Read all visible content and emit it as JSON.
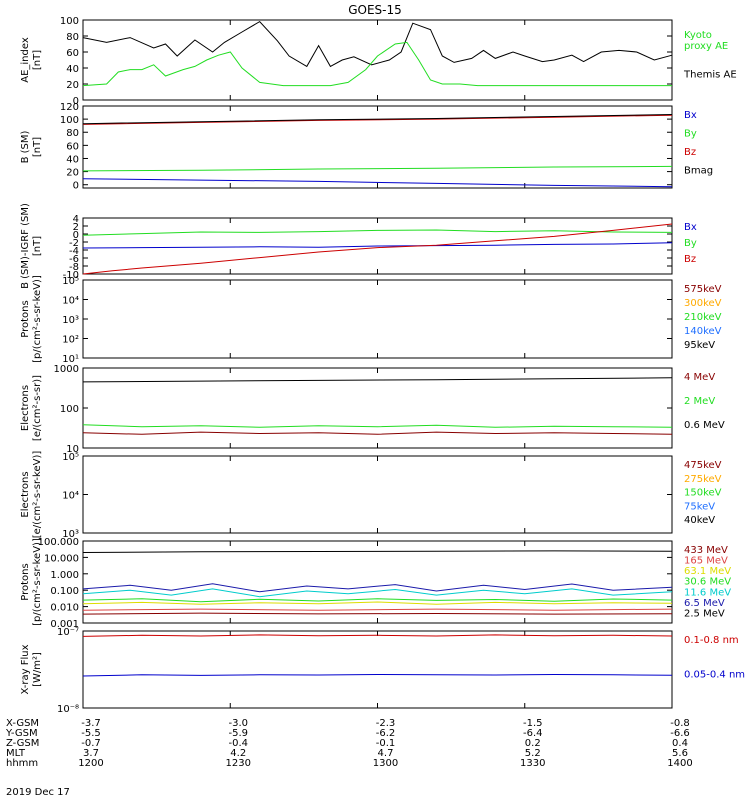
{
  "title": "GOES-15",
  "date_label": "2019 Dec 17",
  "colors": {
    "black": "#000000",
    "green": "#22dd22",
    "red": "#cc0000",
    "blue": "#0000cc",
    "orange": "#ffaa00",
    "lightblue": "#1f6fff",
    "darkred": "#880000",
    "lightred": "#dd4444",
    "yellow": "#dddd00",
    "cyan": "#00cccc",
    "navy": "#1a1aaa",
    "violet": "#772299"
  },
  "time_axis": {
    "ticks": [
      "1200",
      "1230",
      "1300",
      "1330",
      "1400"
    ],
    "rows": [
      {
        "label": "X-GSM",
        "values": [
          "-3.7",
          "-3.0",
          "-2.3",
          "-1.5",
          "-0.8"
        ]
      },
      {
        "label": "Y-GSM",
        "values": [
          "-5.5",
          "-5.9",
          "-6.2",
          "-6.4",
          "-6.6"
        ]
      },
      {
        "label": "Z-GSM",
        "values": [
          "-0.7",
          "-0.4",
          "-0.1",
          "0.2",
          "0.4"
        ]
      },
      {
        "label": "MLT",
        "values": [
          "3.7",
          "4.2",
          "4.7",
          "5.2",
          "5.6"
        ]
      },
      {
        "label": "hhmm",
        "values": [
          "1200",
          "1230",
          "1300",
          "1330",
          "1400"
        ]
      }
    ]
  },
  "chart_data": [
    {
      "type": "line",
      "id": "ae",
      "ylabel_lines": [
        "AE_index",
        "[nT]"
      ],
      "ylim": [
        0,
        100
      ],
      "yticks": [
        "0",
        "20",
        "40",
        "60",
        "80",
        "100"
      ],
      "legend": [
        {
          "text": "Kyoto",
          "color": "green"
        },
        {
          "text": "proxy AE",
          "color": "green"
        },
        {
          "text": "Themis AE",
          "color": "black"
        }
      ],
      "series": [
        {
          "name": "Themis AE",
          "color": "black",
          "x": [
            0,
            4,
            8,
            12,
            14,
            16,
            19,
            22,
            24,
            27,
            30,
            33,
            35,
            38,
            40,
            42,
            44,
            46,
            49,
            52,
            54,
            56,
            59,
            61,
            63,
            66,
            68,
            70,
            73,
            75,
            78,
            80,
            83,
            85,
            88,
            91,
            94,
            97,
            100
          ],
          "values": [
            78,
            72,
            78,
            65,
            70,
            55,
            75,
            60,
            72,
            85,
            98,
            74,
            55,
            42,
            68,
            42,
            50,
            54,
            44,
            50,
            60,
            96,
            88,
            55,
            47,
            52,
            62,
            52,
            60,
            55,
            48,
            50,
            56,
            48,
            60,
            62,
            60,
            50,
            56
          ]
        },
        {
          "name": "Kyoto proxy AE",
          "color": "green",
          "x": [
            0,
            4,
            6,
            8,
            10,
            12,
            14,
            17,
            19,
            21,
            23,
            25,
            27,
            30,
            32,
            34,
            38,
            42,
            45,
            48,
            50,
            53,
            55,
            57,
            59,
            61,
            64,
            67,
            70,
            100
          ],
          "values": [
            18,
            20,
            35,
            38,
            38,
            44,
            30,
            38,
            42,
            50,
            56,
            60,
            40,
            22,
            20,
            18,
            18,
            18,
            22,
            38,
            55,
            70,
            72,
            50,
            25,
            20,
            20,
            18,
            18,
            18
          ]
        }
      ]
    },
    {
      "type": "line",
      "id": "bsm",
      "ylabel_lines": [
        "B (SM)",
        "[nT]"
      ],
      "ylim": [
        -5,
        120
      ],
      "yticks": [
        "0",
        "20",
        "40",
        "60",
        "80",
        "100",
        "120"
      ],
      "legend": [
        {
          "text": "Bx",
          "color": "blue"
        },
        {
          "text": "By",
          "color": "green"
        },
        {
          "text": "Bz",
          "color": "red"
        },
        {
          "text": "Bmag",
          "color": "black"
        }
      ],
      "series": [
        {
          "name": "Bz",
          "color": "red",
          "x": [
            0,
            20,
            40,
            60,
            80,
            100
          ],
          "values": [
            92,
            95,
            98,
            100,
            103,
            106
          ]
        },
        {
          "name": "Bmag",
          "color": "black",
          "x": [
            0,
            20,
            40,
            60,
            80,
            100
          ],
          "values": [
            93,
            96,
            99,
            101,
            104,
            107
          ]
        },
        {
          "name": "By",
          "color": "green",
          "x": [
            0,
            20,
            40,
            60,
            80,
            100
          ],
          "values": [
            21,
            22,
            24,
            25,
            27,
            28
          ]
        },
        {
          "name": "Bx",
          "color": "blue",
          "x": [
            0,
            20,
            40,
            60,
            80,
            100
          ],
          "values": [
            9,
            7,
            5,
            2,
            -1,
            -3
          ]
        }
      ]
    },
    {
      "type": "line",
      "id": "bigrf",
      "ylabel_lines": [
        "B (SM)-IGRF (SM)",
        "[nT]"
      ],
      "ylim": [
        -10,
        4
      ],
      "yticks": [
        "-10",
        "-8",
        "-6",
        "-4",
        "-2",
        "0",
        "2",
        "4"
      ],
      "legend": [
        {
          "text": "Bx",
          "color": "blue"
        },
        {
          "text": "By",
          "color": "green"
        },
        {
          "text": "Bz",
          "color": "red"
        }
      ],
      "series": [
        {
          "name": "Bx",
          "color": "blue",
          "x": [
            0,
            10,
            20,
            30,
            40,
            50,
            60,
            70,
            80,
            90,
            100
          ],
          "values": [
            -3.5,
            -3.4,
            -3.3,
            -3.2,
            -3.3,
            -3.0,
            -2.9,
            -2.8,
            -2.6,
            -2.5,
            -2.2
          ]
        },
        {
          "name": "By",
          "color": "green",
          "x": [
            0,
            10,
            20,
            30,
            40,
            50,
            60,
            70,
            80,
            90,
            100
          ],
          "values": [
            -0.3,
            0.1,
            0.5,
            0.4,
            0.6,
            0.9,
            1.0,
            0.6,
            0.8,
            0.5,
            0.4
          ]
        },
        {
          "name": "Bz",
          "color": "red",
          "x": [
            0,
            5,
            10,
            20,
            30,
            40,
            50,
            60,
            70,
            80,
            90,
            100
          ],
          "values": [
            -10,
            -9.2,
            -8.5,
            -7.3,
            -5.9,
            -4.5,
            -3.4,
            -2.8,
            -1.7,
            -0.6,
            0.9,
            2.5
          ]
        }
      ]
    },
    {
      "type": "line",
      "id": "protons_low",
      "ylabel_lines": [
        "Protons",
        "[p/(cm²-s-sr-keV)]"
      ],
      "ylim": [
        10,
        100000
      ],
      "log": true,
      "yticks": [
        "10¹",
        "10²",
        "10³",
        "10⁴",
        "10⁵"
      ],
      "legend": [
        {
          "text": "575keV",
          "color": "darkred"
        },
        {
          "text": "300keV",
          "color": "orange"
        },
        {
          "text": "210keV",
          "color": "green"
        },
        {
          "text": "140keV",
          "color": "lightblue"
        },
        {
          "text": "95keV",
          "color": "black"
        }
      ],
      "series": []
    },
    {
      "type": "line",
      "id": "electrons_mev",
      "ylabel_lines": [
        "Electrons",
        "[e/(cm²-s-sr)]"
      ],
      "ylim": [
        10,
        1000
      ],
      "log": true,
      "yticks": [
        "10",
        "100",
        "1000"
      ],
      "legend": [
        {
          "text": "4 MeV",
          "color": "darkred"
        },
        {
          "text": "2 MeV",
          "color": "green"
        },
        {
          "text": "0.6 MeV",
          "color": "black"
        }
      ],
      "series": [
        {
          "name": "0.6 MeV",
          "color": "black",
          "x": [
            0,
            20,
            40,
            60,
            80,
            100
          ],
          "values": [
            450,
            470,
            490,
            510,
            540,
            570
          ]
        },
        {
          "name": "2 MeV",
          "color": "green",
          "x": [
            0,
            10,
            20,
            30,
            40,
            50,
            60,
            70,
            80,
            90,
            100
          ],
          "values": [
            38,
            34,
            36,
            33,
            36,
            34,
            37,
            33,
            35,
            34,
            33
          ]
        },
        {
          "name": "4 MeV",
          "color": "darkred",
          "x": [
            0,
            10,
            20,
            30,
            40,
            50,
            60,
            70,
            80,
            90,
            100
          ],
          "values": [
            24,
            22,
            25,
            23,
            24,
            22,
            25,
            23,
            24,
            23,
            22
          ]
        }
      ]
    },
    {
      "type": "line",
      "id": "electrons_kev",
      "ylabel_lines": [
        "Electrons",
        "[e/(cm²-s-sr-keV)]"
      ],
      "ylim": [
        1000,
        100000
      ],
      "log": true,
      "yticks": [
        "10³",
        "10⁴",
        "10⁵"
      ],
      "legend": [
        {
          "text": "475keV",
          "color": "darkred"
        },
        {
          "text": "275keV",
          "color": "orange"
        },
        {
          "text": "150keV",
          "color": "green"
        },
        {
          "text": "75keV",
          "color": "lightblue"
        },
        {
          "text": "40keV",
          "color": "black"
        }
      ],
      "series": []
    },
    {
      "type": "line",
      "id": "protons_high",
      "ylabel_lines": [
        "Protons",
        "[p/(cm²-s-sr-keV)]"
      ],
      "ylim": [
        0.001,
        100
      ],
      "log": true,
      "yticks": [
        "0.001",
        "0.010",
        "0.100",
        "1.000",
        "10.000",
        "100.000"
      ],
      "legend": [
        {
          "text": "433 MeV",
          "color": "darkred"
        },
        {
          "text": "165 MeV",
          "color": "lightred"
        },
        {
          "text": "63.1 MeV",
          "color": "yellow"
        },
        {
          "text": "30.6 MeV",
          "color": "green"
        },
        {
          "text": "11.6 MeV",
          "color": "cyan"
        },
        {
          "text": "6.5 MeV",
          "color": "navy"
        },
        {
          "text": "2.5 MeV",
          "color": "black"
        }
      ],
      "series": [
        {
          "name": "2.5 MeV",
          "color": "black",
          "x": [
            0,
            20,
            40,
            60,
            80,
            100
          ],
          "values": [
            20,
            22,
            23,
            24,
            25,
            24
          ]
        },
        {
          "name": "6.5 MeV",
          "color": "navy",
          "x": [
            0,
            8,
            15,
            22,
            30,
            38,
            45,
            53,
            60,
            68,
            75,
            83,
            90,
            100
          ],
          "values": [
            0.12,
            0.2,
            0.1,
            0.25,
            0.08,
            0.18,
            0.12,
            0.22,
            0.09,
            0.2,
            0.11,
            0.24,
            0.1,
            0.15
          ]
        },
        {
          "name": "11.6 MeV",
          "color": "cyan",
          "x": [
            0,
            8,
            15,
            22,
            30,
            38,
            45,
            53,
            60,
            68,
            75,
            83,
            90,
            100
          ],
          "values": [
            0.06,
            0.1,
            0.05,
            0.12,
            0.04,
            0.09,
            0.06,
            0.11,
            0.05,
            0.1,
            0.06,
            0.12,
            0.05,
            0.08
          ]
        },
        {
          "name": "30.6 MeV",
          "color": "green",
          "x": [
            0,
            10,
            20,
            30,
            40,
            50,
            60,
            70,
            80,
            90,
            100
          ],
          "values": [
            0.025,
            0.03,
            0.02,
            0.028,
            0.022,
            0.03,
            0.024,
            0.027,
            0.021,
            0.029,
            0.025
          ]
        },
        {
          "name": "63.1 MeV",
          "color": "yellow",
          "x": [
            0,
            10,
            20,
            30,
            40,
            50,
            60,
            70,
            80,
            90,
            100
          ],
          "values": [
            0.015,
            0.018,
            0.014,
            0.017,
            0.015,
            0.019,
            0.014,
            0.018,
            0.015,
            0.017,
            0.016
          ]
        },
        {
          "name": "165 MeV",
          "color": "lightred",
          "x": [
            0,
            20,
            40,
            60,
            80,
            100
          ],
          "values": [
            0.006,
            0.007,
            0.006,
            0.007,
            0.006,
            0.007
          ]
        },
        {
          "name": "433 MeV",
          "color": "darkred",
          "x": [
            0,
            20,
            40,
            60,
            80,
            100
          ],
          "values": [
            0.0035,
            0.004,
            0.0036,
            0.0038,
            0.0035,
            0.0037
          ]
        }
      ]
    },
    {
      "type": "line",
      "id": "xray",
      "ylabel_lines": [
        "X-ray Flux",
        "[W/m²]"
      ],
      "ylim": [
        1e-08,
        1e-07
      ],
      "log": true,
      "yticks": [
        "10⁻⁸",
        "10⁻⁷"
      ],
      "legend": [
        {
          "text": "0.1-0.8 nm",
          "color": "red"
        },
        {
          "text": "0.05-0.4 nm",
          "color": "blue"
        }
      ],
      "series": [
        {
          "name": "0.1-0.8 nm",
          "color": "red",
          "x": [
            0,
            10,
            20,
            30,
            40,
            50,
            60,
            70,
            80,
            90,
            100
          ],
          "values": [
            8.5e-08,
            8.8e-08,
            8.6e-08,
            8.9e-08,
            8.7e-08,
            8.8e-08,
            8.6e-08,
            8.9e-08,
            8.7e-08,
            8.8e-08,
            8.6e-08
          ]
        },
        {
          "name": "0.05-0.4 nm",
          "color": "blue",
          "x": [
            0,
            10,
            20,
            30,
            40,
            50,
            60,
            70,
            80,
            90,
            100
          ],
          "values": [
            2.6e-08,
            2.7e-08,
            2.65e-08,
            2.7e-08,
            2.68e-08,
            2.72e-08,
            2.7e-08,
            2.68e-08,
            2.72e-08,
            2.7e-08,
            2.66e-08
          ]
        }
      ]
    }
  ]
}
